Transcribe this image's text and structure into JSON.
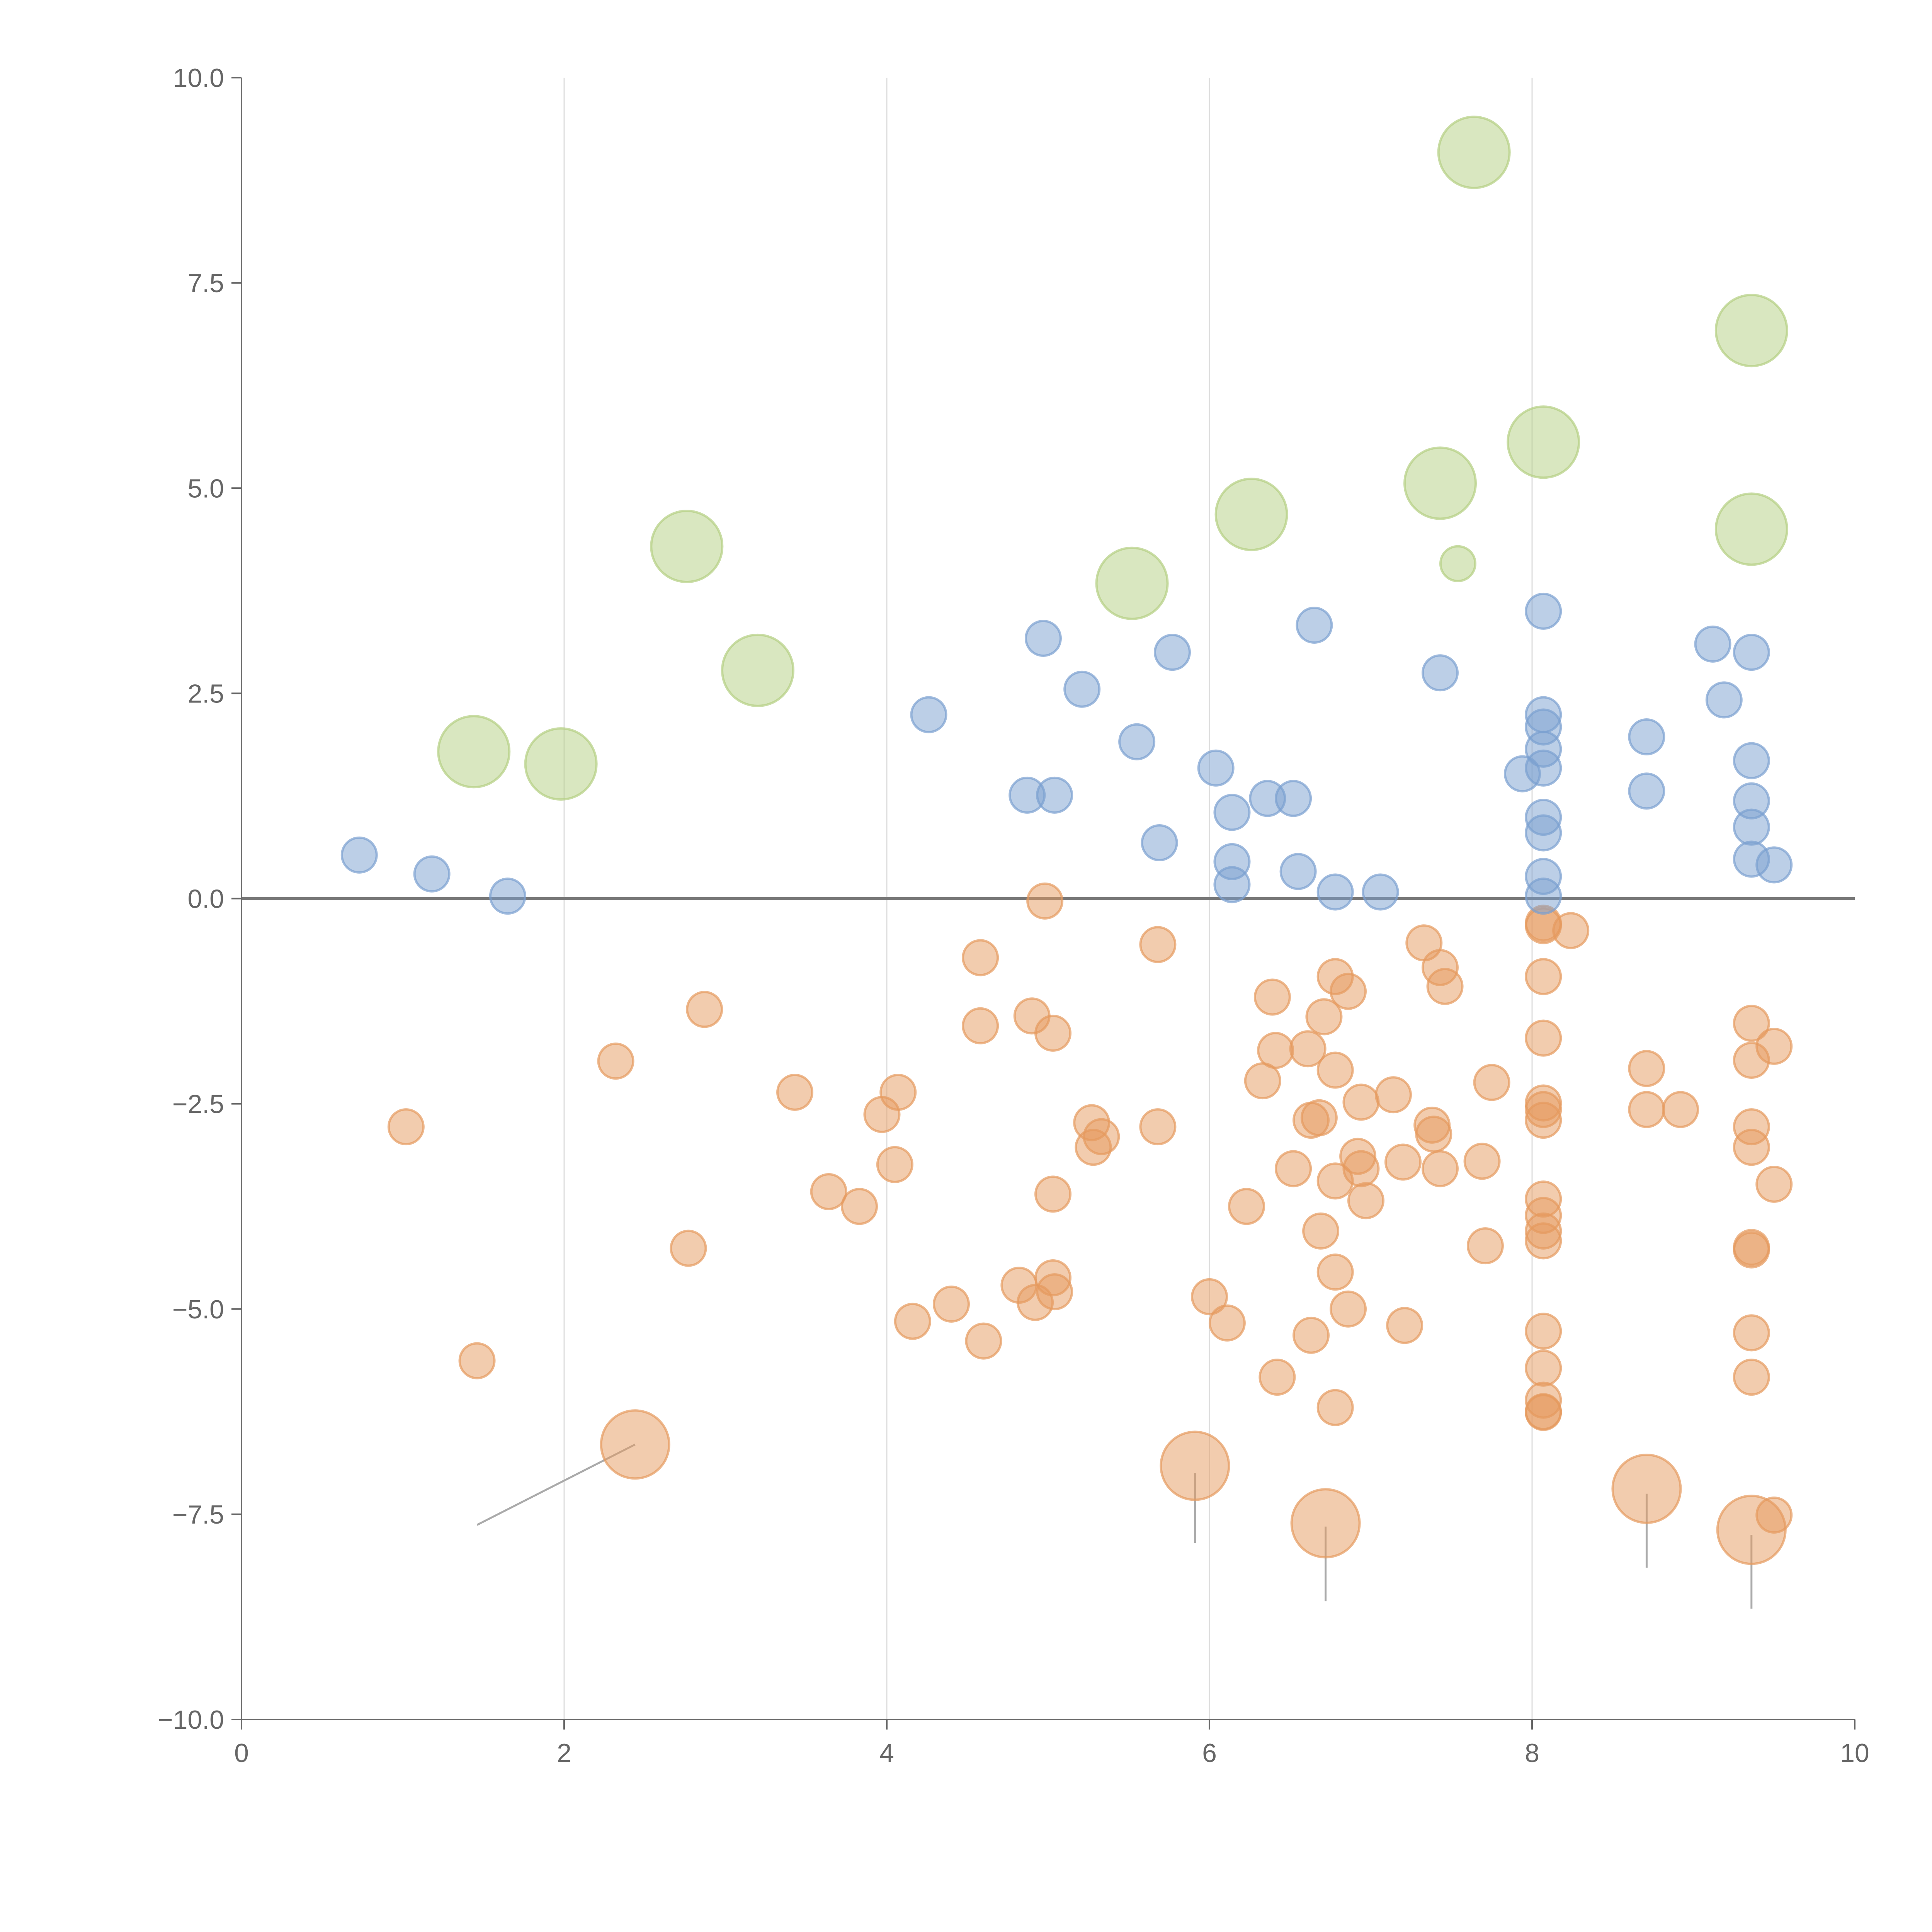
{
  "chart_data": {
    "type": "scatter",
    "title": "",
    "xlabel": "",
    "ylabel": "",
    "xlim": [
      0,
      10
    ],
    "ylim": [
      -10,
      10
    ],
    "grid": "vertical",
    "zero_line": true,
    "xticks": [
      "0",
      "2",
      "4",
      "6",
      "8",
      "10"
    ],
    "xtick_values": [
      0,
      2,
      4,
      6,
      8,
      10
    ],
    "yticks": [
      "10.0",
      "7.5",
      "5.0",
      "2.5",
      "0.0",
      "−2.5",
      "−5.0",
      "−7.5",
      "−10.0"
    ],
    "ytick_values": [
      10,
      7.5,
      5,
      2.5,
      0,
      -2.5,
      -5,
      -7.5,
      -10
    ],
    "colors": {
      "blue": "#7a9fd0",
      "orange": "#e59a5e",
      "green": "#b4cf82",
      "axis": "#666666",
      "grid": "#dddddd",
      "leader": "#aaaaaa"
    },
    "series": [
      {
        "name": "blue",
        "size_note": "s: 1 = small, 2 = large",
        "points": [
          [
            0.73,
            0.53,
            1
          ],
          [
            1.18,
            0.3,
            1
          ],
          [
            1.65,
            0.03,
            1
          ],
          [
            4.26,
            2.24,
            1
          ],
          [
            4.97,
            3.17,
            1
          ],
          [
            5.21,
            2.55,
            1
          ],
          [
            4.87,
            1.26,
            1
          ],
          [
            5.04,
            1.26,
            1
          ],
          [
            5.55,
            1.91,
            1
          ],
          [
            5.69,
            0.68,
            1
          ],
          [
            5.77,
            3.0,
            1
          ],
          [
            6.04,
            1.59,
            1
          ],
          [
            6.14,
            1.05,
            1
          ],
          [
            6.14,
            0.45,
            1
          ],
          [
            6.14,
            0.17,
            1
          ],
          [
            6.36,
            1.22,
            1
          ],
          [
            6.52,
            1.22,
            1
          ],
          [
            6.55,
            0.33,
            1
          ],
          [
            6.65,
            3.33,
            1
          ],
          [
            6.78,
            0.08,
            1
          ],
          [
            7.06,
            0.08,
            1
          ],
          [
            7.43,
            2.75,
            1
          ],
          [
            7.94,
            1.52,
            1
          ],
          [
            8.07,
            3.5,
            1
          ],
          [
            8.07,
            2.24,
            1
          ],
          [
            8.07,
            2.09,
            1
          ],
          [
            8.07,
            1.82,
            1
          ],
          [
            8.07,
            1.59,
            1
          ],
          [
            8.07,
            0.99,
            1
          ],
          [
            8.07,
            0.8,
            1
          ],
          [
            8.07,
            0.27,
            1
          ],
          [
            8.07,
            0.03,
            1
          ],
          [
            8.71,
            1.97,
            1
          ],
          [
            8.71,
            1.31,
            1
          ],
          [
            9.12,
            3.1,
            1
          ],
          [
            9.19,
            2.42,
            1
          ],
          [
            9.36,
            3.0,
            1
          ],
          [
            9.36,
            1.68,
            1
          ],
          [
            9.36,
            1.19,
            1
          ],
          [
            9.36,
            0.87,
            1
          ],
          [
            9.36,
            0.48,
            1
          ],
          [
            9.5,
            0.41,
            1
          ]
        ]
      },
      {
        "name": "green",
        "points": [
          [
            1.44,
            1.79,
            2
          ],
          [
            1.98,
            1.64,
            2
          ],
          [
            2.76,
            4.29,
            2
          ],
          [
            3.2,
            2.78,
            2
          ],
          [
            5.52,
            3.84,
            2
          ],
          [
            6.26,
            4.68,
            2
          ],
          [
            7.43,
            5.06,
            2
          ],
          [
            7.54,
            4.08,
            1
          ],
          [
            7.64,
            9.09,
            2
          ],
          [
            8.07,
            5.56,
            2
          ],
          [
            9.36,
            6.92,
            2
          ],
          [
            9.36,
            4.5,
            2
          ]
        ]
      },
      {
        "name": "orange",
        "points": [
          [
            1.02,
            -2.78,
            1
          ],
          [
            1.46,
            -5.63,
            1
          ],
          [
            2.32,
            -1.98,
            1
          ],
          [
            2.44,
            -6.65,
            2
          ],
          [
            2.77,
            -4.26,
            1
          ],
          [
            2.87,
            -1.35,
            1
          ],
          [
            3.43,
            -2.36,
            1
          ],
          [
            3.64,
            -3.57,
            1
          ],
          [
            3.83,
            -3.75,
            1
          ],
          [
            3.97,
            -2.63,
            1
          ],
          [
            4.07,
            -2.36,
            1
          ],
          [
            4.05,
            -3.24,
            1
          ],
          [
            4.16,
            -5.15,
            1
          ],
          [
            4.4,
            -4.94,
            1
          ],
          [
            4.58,
            -0.72,
            1
          ],
          [
            4.58,
            -1.55,
            1
          ],
          [
            4.6,
            -5.39,
            1
          ],
          [
            4.82,
            -4.71,
            1
          ],
          [
            4.9,
            -1.43,
            1
          ],
          [
            4.92,
            -4.92,
            1
          ],
          [
            4.98,
            -0.03,
            1
          ],
          [
            5.03,
            -1.64,
            1
          ],
          [
            5.03,
            -3.6,
            1
          ],
          [
            5.03,
            -4.62,
            1
          ],
          [
            5.04,
            -4.79,
            1
          ],
          [
            5.27,
            -2.73,
            1
          ],
          [
            5.28,
            -3.03,
            1
          ],
          [
            5.33,
            -2.9,
            1
          ],
          [
            5.68,
            -2.78,
            1
          ],
          [
            5.68,
            -0.56,
            1
          ],
          [
            5.91,
            -6.91,
            2
          ],
          [
            6.0,
            -4.85,
            1
          ],
          [
            6.11,
            -5.17,
            1
          ],
          [
            6.23,
            -3.75,
            1
          ],
          [
            6.33,
            -2.22,
            1
          ],
          [
            6.39,
            -1.2,
            1
          ],
          [
            6.41,
            -1.85,
            1
          ],
          [
            6.42,
            -5.83,
            1
          ],
          [
            6.52,
            -3.29,
            1
          ],
          [
            6.61,
            -1.83,
            1
          ],
          [
            6.63,
            -5.32,
            1
          ],
          [
            6.63,
            -2.7,
            1
          ],
          [
            6.68,
            -2.67,
            1
          ],
          [
            6.69,
            -4.05,
            1
          ],
          [
            6.71,
            -1.44,
            1
          ],
          [
            6.72,
            -7.61,
            2
          ],
          [
            6.78,
            -4.55,
            1
          ],
          [
            6.78,
            -3.44,
            1
          ],
          [
            6.78,
            -2.09,
            1
          ],
          [
            6.78,
            -6.2,
            1
          ],
          [
            6.78,
            -0.95,
            1
          ],
          [
            6.86,
            -1.13,
            1
          ],
          [
            6.86,
            -5.0,
            1
          ],
          [
            6.92,
            -3.14,
            1
          ],
          [
            6.94,
            -3.29,
            1
          ],
          [
            6.94,
            -2.48,
            1
          ],
          [
            6.97,
            -3.68,
            1
          ],
          [
            7.14,
            -2.39,
            1
          ],
          [
            7.2,
            -3.21,
            1
          ],
          [
            7.21,
            -5.2,
            1
          ],
          [
            7.33,
            -0.54,
            1
          ],
          [
            7.38,
            -2.76,
            1
          ],
          [
            7.39,
            -2.87,
            1
          ],
          [
            7.43,
            -0.84,
            1
          ],
          [
            7.43,
            -3.29,
            1
          ],
          [
            7.46,
            -1.07,
            1
          ],
          [
            7.69,
            -3.2,
            1
          ],
          [
            7.71,
            -4.23,
            1
          ],
          [
            7.75,
            -2.24,
            1
          ],
          [
            8.07,
            -0.3,
            1
          ],
          [
            8.07,
            -0.33,
            1
          ],
          [
            8.07,
            -0.95,
            1
          ],
          [
            8.07,
            -1.7,
            1
          ],
          [
            8.07,
            -2.49,
            1
          ],
          [
            8.07,
            -2.57,
            1
          ],
          [
            8.07,
            -2.7,
            1
          ],
          [
            8.07,
            -3.66,
            1
          ],
          [
            8.07,
            -3.86,
            1
          ],
          [
            8.07,
            -4.05,
            1
          ],
          [
            8.07,
            -4.17,
            1
          ],
          [
            8.07,
            -5.27,
            1
          ],
          [
            8.07,
            -5.72,
            1
          ],
          [
            8.07,
            -6.11,
            1
          ],
          [
            8.07,
            -6.25,
            1
          ],
          [
            8.07,
            -6.26,
            1
          ],
          [
            8.24,
            -0.39,
            1
          ],
          [
            8.71,
            -2.07,
            1
          ],
          [
            8.71,
            -2.57,
            1
          ],
          [
            8.71,
            -7.19,
            2
          ],
          [
            8.92,
            -2.57,
            1
          ],
          [
            9.36,
            -1.52,
            1
          ],
          [
            9.36,
            -1.97,
            1
          ],
          [
            9.36,
            -2.78,
            1
          ],
          [
            9.36,
            -3.03,
            1
          ],
          [
            9.36,
            -4.25,
            1
          ],
          [
            9.36,
            -4.28,
            1
          ],
          [
            9.36,
            -5.29,
            1
          ],
          [
            9.36,
            -5.83,
            1
          ],
          [
            9.36,
            -7.69,
            2
          ],
          [
            9.5,
            -1.8,
            1
          ],
          [
            9.5,
            -3.48,
            1
          ],
          [
            9.5,
            -7.51,
            1
          ]
        ]
      }
    ],
    "leader_lines": [
      [
        2.44,
        -6.65,
        1.46,
        -7.63
      ],
      [
        5.91,
        -7.0,
        5.91,
        -7.85
      ],
      [
        6.72,
        -7.65,
        6.72,
        -8.56
      ],
      [
        8.71,
        -7.25,
        8.71,
        -8.15
      ],
      [
        9.36,
        -7.75,
        9.36,
        -8.65
      ]
    ]
  }
}
